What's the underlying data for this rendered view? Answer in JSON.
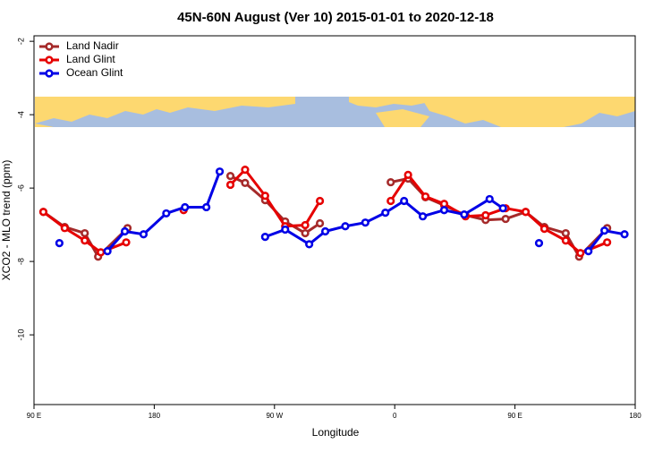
{
  "chart_data": {
    "type": "line",
    "title": "45N-60N August (Ver 10)   2015-01-01 to 2020-12-18",
    "x_label": "Longitude",
    "y_label": "XCO2 - MLO trend (ppm)",
    "xlim": [
      90,
      540
    ],
    "xticks": [
      {
        "value": 90,
        "label": "90 E"
      },
      {
        "value": 180,
        "label": "180"
      },
      {
        "value": 270,
        "label": "90 W"
      },
      {
        "value": 360,
        "label": "0"
      },
      {
        "value": 450,
        "label": "90 E"
      },
      {
        "value": 540,
        "label": "180"
      }
    ],
    "ylim": [
      -11.9,
      -1.85
    ],
    "yticks": [
      -2,
      -4,
      -6,
      -8,
      -10
    ],
    "legend": "top-left",
    "series": [
      {
        "name": "Land Nadir",
        "color": "#a52a2a",
        "x": [
          97,
          113,
          128,
          138,
          160,
          200,
          237,
          248,
          263,
          278,
          293,
          304,
          330,
          357,
          370,
          383,
          397,
          413,
          428,
          443,
          458,
          472,
          488,
          498,
          519
        ],
        "values": [
          -6.65,
          -7.06,
          -7.23,
          -7.87,
          -7.09,
          null,
          -5.67,
          -5.86,
          -6.33,
          -6.91,
          -7.23,
          -6.96,
          null,
          -5.84,
          -5.74,
          -6.25,
          -6.47,
          -6.74,
          -6.87,
          -6.84,
          -6.65,
          -7.06,
          -7.23,
          -7.87,
          -7.09
        ]
      },
      {
        "name": "Land Glint",
        "color": "#e60000",
        "x": [
          97,
          113,
          128,
          140,
          159,
          180,
          202,
          220,
          237,
          248,
          263,
          278,
          293,
          304,
          330,
          357,
          370,
          383,
          397,
          413,
          428,
          443,
          458,
          472,
          488,
          499,
          519
        ],
        "values": [
          -6.65,
          -7.09,
          -7.43,
          -7.75,
          -7.48,
          null,
          -6.6,
          null,
          -5.91,
          -5.5,
          -6.21,
          -7.04,
          -7.01,
          -6.35,
          null,
          -6.35,
          -5.64,
          -6.23,
          -6.43,
          -6.77,
          -6.74,
          -6.55,
          -6.65,
          -7.11,
          -7.43,
          -7.77,
          -7.48
        ]
      },
      {
        "name": "Ocean Glint",
        "color": "#0000e6",
        "x": [
          109,
          127,
          145,
          158,
          172,
          189,
          203,
          219,
          229,
          246,
          263,
          278,
          296,
          308,
          323,
          338,
          353,
          367,
          381,
          397,
          412,
          431,
          441,
          455,
          468,
          486,
          505,
          517,
          532
        ],
        "values": [
          -7.5,
          null,
          -7.72,
          -7.18,
          -7.26,
          -6.69,
          -6.52,
          -6.52,
          -5.55,
          null,
          -7.33,
          -7.13,
          -7.53,
          -7.18,
          -7.04,
          -6.94,
          -6.67,
          -6.35,
          -6.77,
          -6.6,
          -6.72,
          -6.3,
          -6.55,
          null,
          -7.5,
          null,
          -7.72,
          -7.16,
          -7.26
        ]
      }
    ]
  }
}
